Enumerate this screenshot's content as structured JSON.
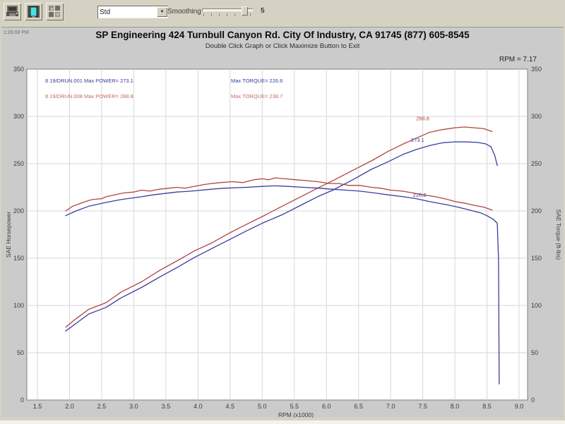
{
  "toolbar": {
    "buttons": [
      {
        "name": "print-graph"
      },
      {
        "name": "maximize-graph"
      },
      {
        "name": "graph-options"
      }
    ],
    "dropdown_value": "Std",
    "smoothing_label": "Smoothing",
    "smoothing_value": "5"
  },
  "header": {
    "timestamp": "1:26:08 PM",
    "title": "SP Engineering 424 Turnbull Canyon Rd. City Of Industry, CA 91745 (877) 605-8545",
    "subtitle": "Double Click Graph or Click Maximize Button to Exit",
    "cursor_readout": "RPM = 7.17"
  },
  "colors": {
    "run1_blue": "#383d9b",
    "run2_red": "#b0453d",
    "grid": "#d6d6de",
    "plot_border": "#7f7f7f",
    "plot_bg": "#ffffff",
    "panel_bg": "#cbcbcb"
  },
  "chart_data": {
    "type": "line",
    "title": "",
    "xlabel": "RPM (x1000)",
    "ylabel_left": "SAE Horsepower",
    "ylabel_right": "SAE Torque (ft-lbs)",
    "xlim": [
      1.335,
      9.132
    ],
    "ylim": [
      0,
      350
    ],
    "x_ticks": [
      1.5,
      2.0,
      2.5,
      3.0,
      3.5,
      4.0,
      4.5,
      5.0,
      5.5,
      6.0,
      6.5,
      7.0,
      7.5,
      8.0,
      8.5,
      9.0
    ],
    "y_ticks": [
      0,
      50,
      100,
      150,
      200,
      250,
      300,
      350
    ],
    "grid": true,
    "legend": {
      "position": "top-inside",
      "items": [
        {
          "text": "8 19/DRUN.001   Max POWER= 273.1",
          "color": "#383d9b",
          "x": 62,
          "y": 28
        },
        {
          "text": "8 19/DRUN.008   Max POWER= 288.8",
          "color": "#c06a64",
          "x": 62,
          "y": 50
        },
        {
          "text": "Max TORQUE= 226.6",
          "color": "#383d9b",
          "x": 325,
          "y": 28
        },
        {
          "text": "Max TORQUE= 238.7",
          "color": "#c06a64",
          "x": 325,
          "y": 50
        }
      ]
    },
    "series": [
      {
        "name": "run-008-power",
        "channel": "power",
        "color": "#b0453d",
        "max": 288.8,
        "points": [
          [
            1.94,
            77
          ],
          [
            2.1,
            86
          ],
          [
            2.3,
            96
          ],
          [
            2.57,
            103
          ],
          [
            2.8,
            114
          ],
          [
            3.12,
            125
          ],
          [
            3.4,
            137
          ],
          [
            3.67,
            147
          ],
          [
            3.95,
            158
          ],
          [
            4.21,
            166
          ],
          [
            4.5,
            177
          ],
          [
            4.76,
            186
          ],
          [
            5.0,
            194
          ],
          [
            5.31,
            205
          ],
          [
            5.6,
            215
          ],
          [
            5.86,
            224
          ],
          [
            6.1,
            232
          ],
          [
            6.41,
            243
          ],
          [
            6.7,
            253
          ],
          [
            6.96,
            263
          ],
          [
            7.2,
            271
          ],
          [
            7.4,
            277
          ],
          [
            7.6,
            283
          ],
          [
            7.8,
            286
          ],
          [
            8.0,
            288
          ],
          [
            8.15,
            288.8
          ],
          [
            8.3,
            288
          ],
          [
            8.45,
            287
          ],
          [
            8.58,
            284
          ]
        ]
      },
      {
        "name": "run-001-power",
        "channel": "power",
        "color": "#383d9b",
        "max": 273.1,
        "points": [
          [
            1.94,
            73
          ],
          [
            2.1,
            81
          ],
          [
            2.3,
            91
          ],
          [
            2.57,
            98
          ],
          [
            2.8,
            108
          ],
          [
            3.12,
            119
          ],
          [
            3.4,
            130
          ],
          [
            3.67,
            140
          ],
          [
            3.95,
            151
          ],
          [
            4.21,
            160
          ],
          [
            4.5,
            170
          ],
          [
            4.76,
            179
          ],
          [
            5.0,
            187
          ],
          [
            5.31,
            196
          ],
          [
            5.6,
            206
          ],
          [
            5.86,
            215
          ],
          [
            6.1,
            222
          ],
          [
            6.41,
            233
          ],
          [
            6.7,
            244
          ],
          [
            6.96,
            252
          ],
          [
            7.2,
            260
          ],
          [
            7.4,
            265
          ],
          [
            7.6,
            269
          ],
          [
            7.8,
            272
          ],
          [
            8.0,
            273.1
          ],
          [
            8.2,
            273
          ],
          [
            8.35,
            272.5
          ],
          [
            8.48,
            271
          ],
          [
            8.56,
            268
          ],
          [
            8.62,
            259
          ],
          [
            8.66,
            248
          ]
        ]
      },
      {
        "name": "run-008-torque",
        "channel": "torque",
        "color": "#b0453d",
        "max": 238.7,
        "points": [
          [
            1.94,
            200
          ],
          [
            2.05,
            205
          ],
          [
            2.13,
            207
          ],
          [
            2.25,
            210
          ],
          [
            2.35,
            212
          ],
          [
            2.5,
            213
          ],
          [
            2.57,
            215
          ],
          [
            2.7,
            217
          ],
          [
            2.84,
            219
          ],
          [
            3.0,
            220
          ],
          [
            3.12,
            222
          ],
          [
            3.25,
            221
          ],
          [
            3.39,
            223
          ],
          [
            3.55,
            224
          ],
          [
            3.67,
            225
          ],
          [
            3.8,
            224
          ],
          [
            3.94,
            226
          ],
          [
            4.1,
            228
          ],
          [
            4.21,
            229
          ],
          [
            4.35,
            230
          ],
          [
            4.54,
            231
          ],
          [
            4.7,
            230
          ],
          [
            4.87,
            233
          ],
          [
            5.0,
            234
          ],
          [
            5.1,
            233
          ],
          [
            5.2,
            235
          ],
          [
            5.35,
            234
          ],
          [
            5.53,
            233
          ],
          [
            5.7,
            232
          ],
          [
            5.86,
            231
          ],
          [
            6.05,
            229
          ],
          [
            6.19,
            229
          ],
          [
            6.35,
            227
          ],
          [
            6.52,
            227
          ],
          [
            6.7,
            225
          ],
          [
            6.85,
            224
          ],
          [
            7.0,
            222
          ],
          [
            7.18,
            221
          ],
          [
            7.35,
            219
          ],
          [
            7.51,
            217
          ],
          [
            7.7,
            215
          ],
          [
            7.84,
            213
          ],
          [
            8.0,
            210
          ],
          [
            8.17,
            208
          ],
          [
            8.3,
            206
          ],
          [
            8.45,
            204
          ],
          [
            8.58,
            201
          ]
        ]
      },
      {
        "name": "run-001-torque",
        "channel": "torque",
        "color": "#383d9b",
        "max": 226.6,
        "points": [
          [
            1.94,
            195
          ],
          [
            2.1,
            200
          ],
          [
            2.3,
            205
          ],
          [
            2.57,
            209
          ],
          [
            2.8,
            212
          ],
          [
            3.12,
            215
          ],
          [
            3.3,
            217
          ],
          [
            3.67,
            220
          ],
          [
            3.9,
            221
          ],
          [
            4.21,
            223
          ],
          [
            4.4,
            224
          ],
          [
            4.76,
            225
          ],
          [
            5.0,
            226
          ],
          [
            5.2,
            226.6
          ],
          [
            5.4,
            226
          ],
          [
            5.64,
            225
          ],
          [
            5.9,
            224
          ],
          [
            6.08,
            223
          ],
          [
            6.3,
            222
          ],
          [
            6.52,
            221
          ],
          [
            6.75,
            219
          ],
          [
            6.96,
            217
          ],
          [
            7.2,
            215
          ],
          [
            7.4,
            213
          ],
          [
            7.6,
            210
          ],
          [
            7.84,
            207
          ],
          [
            8.05,
            204
          ],
          [
            8.23,
            201
          ],
          [
            8.4,
            198
          ],
          [
            8.5,
            195
          ],
          [
            8.6,
            191
          ],
          [
            8.66,
            187
          ],
          [
            8.68,
            148
          ],
          [
            8.69,
            17
          ]
        ]
      }
    ],
    "annotations": [
      {
        "text": "288.8",
        "x": 7.5,
        "y": 296,
        "color": "#b0453d"
      },
      {
        "text": "273.1",
        "x": 7.42,
        "y": 273,
        "color": "#383d9b"
      },
      {
        "text": "226.6",
        "x": 7.45,
        "y": 215,
        "color": "#383d9b"
      }
    ]
  }
}
